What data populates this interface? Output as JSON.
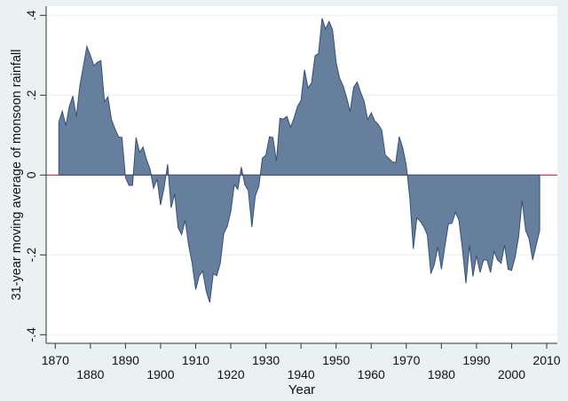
{
  "chart_data": {
    "type": "area",
    "title": "",
    "xlabel": "Year",
    "ylabel": "31-year moving average of monsoon rainfall",
    "xlim": [
      1870,
      2010
    ],
    "ylim": [
      -0.4,
      0.4
    ],
    "x_ticks": [
      1870,
      1880,
      1890,
      1900,
      1910,
      1920,
      1930,
      1940,
      1950,
      1960,
      1970,
      1980,
      1990,
      2000,
      2010
    ],
    "x_tick_labels": [
      "1870",
      "1880",
      "1890",
      "1900",
      "1910",
      "1920",
      "1930",
      "1940",
      "1950",
      "1960",
      "1970",
      "1980",
      "1990",
      "2000",
      "2010"
    ],
    "y_ticks": [
      -0.4,
      -0.2,
      0,
      0.2,
      0.4
    ],
    "y_tick_labels": [
      "-.4",
      "-.2",
      "0",
      ".2",
      ".4"
    ],
    "grid": true,
    "reference_line": 0,
    "colors": {
      "fill": "#667f9c",
      "stroke": "#34507a",
      "reference": "#d0203a",
      "grid": "#e6eff2",
      "background": "#eaf1f3"
    },
    "x_start": 1871,
    "values": [
      0.133,
      0.16,
      0.124,
      0.172,
      0.198,
      0.146,
      0.224,
      0.272,
      0.322,
      0.3,
      0.274,
      0.283,
      0.287,
      0.184,
      0.196,
      0.139,
      0.116,
      0.096,
      0.094,
      -0.006,
      -0.026,
      -0.026,
      0.094,
      0.057,
      0.07,
      0.039,
      0.015,
      -0.033,
      -0.01,
      -0.075,
      -0.032,
      0.027,
      -0.082,
      -0.047,
      -0.132,
      -0.149,
      -0.113,
      -0.176,
      -0.221,
      -0.287,
      -0.252,
      -0.241,
      -0.291,
      -0.319,
      -0.247,
      -0.252,
      -0.221,
      -0.147,
      -0.128,
      -0.091,
      -0.024,
      -0.036,
      0.02,
      -0.024,
      -0.039,
      -0.13,
      -0.052,
      -0.028,
      0.042,
      0.05,
      0.096,
      0.094,
      0.035,
      0.142,
      0.14,
      0.147,
      0.12,
      0.142,
      0.172,
      0.187,
      0.264,
      0.218,
      0.231,
      0.299,
      0.305,
      0.393,
      0.366,
      0.385,
      0.364,
      0.283,
      0.242,
      0.224,
      0.194,
      0.159,
      0.22,
      0.233,
      0.207,
      0.185,
      0.139,
      0.156,
      0.136,
      0.127,
      0.113,
      0.05,
      0.042,
      0.033,
      0.031,
      0.096,
      0.068,
      0.024,
      -0.058,
      -0.185,
      -0.107,
      -0.116,
      -0.13,
      -0.15,
      -0.247,
      -0.224,
      -0.18,
      -0.236,
      -0.178,
      -0.122,
      -0.121,
      -0.093,
      -0.113,
      -0.187,
      -0.271,
      -0.176,
      -0.254,
      -0.202,
      -0.244,
      -0.213,
      -0.213,
      -0.244,
      -0.191,
      -0.213,
      -0.221,
      -0.175,
      -0.236,
      -0.239,
      -0.206,
      -0.154,
      -0.064,
      -0.139,
      -0.16,
      -0.213,
      -0.176,
      -0.139
    ]
  }
}
